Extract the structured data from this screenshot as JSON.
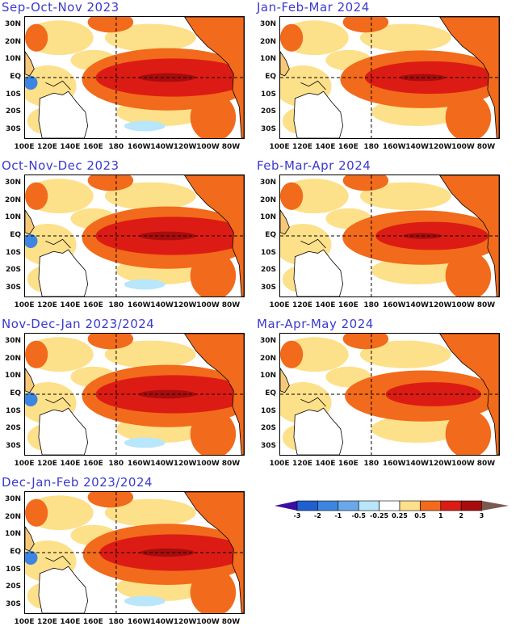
{
  "panels": [
    {
      "title": "Sep-Oct-Nov 2023"
    },
    {
      "title": "Jan-Feb-Mar 2024"
    },
    {
      "title": "Oct-Nov-Dec 2023"
    },
    {
      "title": "Feb-Mar-Apr 2024"
    },
    {
      "title": "Nov-Dec-Jan 2023/2024"
    },
    {
      "title": "Mar-Apr-May 2024"
    },
    {
      "title": "Dec-Jan-Feb 2023/2024"
    }
  ],
  "lat_ticks": [
    "30N",
    "20N",
    "10N",
    "EQ",
    "10S",
    "20S",
    "30S"
  ],
  "lon_ticks": [
    "100E",
    "120E",
    "140E",
    "160E",
    "180",
    "160W",
    "140W",
    "120W",
    "100W",
    "80W"
  ],
  "colorbar": {
    "labels": [
      "-3",
      "-2",
      "-1",
      "-0.5",
      "-0.25",
      "0.25",
      "0.5",
      "1",
      "2",
      "3"
    ],
    "colors": [
      "#3a10a0",
      "#1f5fd0",
      "#3d85e0",
      "#6aa8ec",
      "#b8e6fa",
      "#ffffff",
      "#fde08a",
      "#f26a1b",
      "#dc1c14",
      "#a80c0c",
      "#7a5a50"
    ]
  }
}
